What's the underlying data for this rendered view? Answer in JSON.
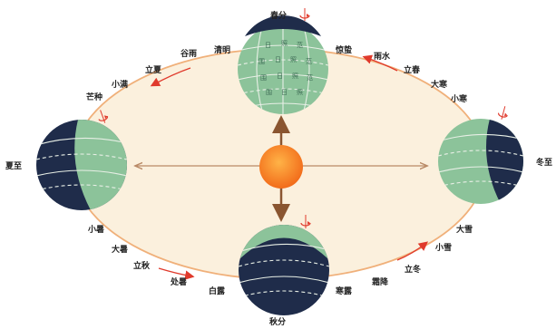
{
  "colors": {
    "orbit_fill": "#fbf0dd",
    "orbit_stroke": "#f0b07a",
    "globe_day": "#8cc39a",
    "globe_night": "#1f2c4a",
    "latitude_line": "#e8efe6",
    "sun": "#f26c1a",
    "axis_arrow": "#8a5530",
    "seasonal_arrow": "#e03a2c",
    "rotation_arrow": "#e03a2c"
  },
  "globes": {
    "top": {
      "label": "春分"
    },
    "left": {
      "label": "夏至"
    },
    "right": {
      "label": "冬至"
    },
    "bottom": {
      "label": "秋分"
    }
  },
  "terms": {
    "qingming": "清明",
    "guyu": "谷雨",
    "lixia": "立夏",
    "xiaoman": "小满",
    "mangzhong": "芒种",
    "jingzhe": "惊蛰",
    "yushui": "雨水",
    "lichun": "立春",
    "dahan": "大寒",
    "xiaohan": "小寒",
    "xiaoshu": "小暑",
    "dashu": "大暑",
    "liqiu": "立秋",
    "chushu": "处暑",
    "bailu": "白露",
    "hanlu": "寒露",
    "shuangjiang": "霜降",
    "lidong": "立冬",
    "xiaoxue": "小雪",
    "daxue": "大雪"
  },
  "icons": {
    "rotation": "rotation-arrow-icon",
    "sun": "sun-icon"
  }
}
